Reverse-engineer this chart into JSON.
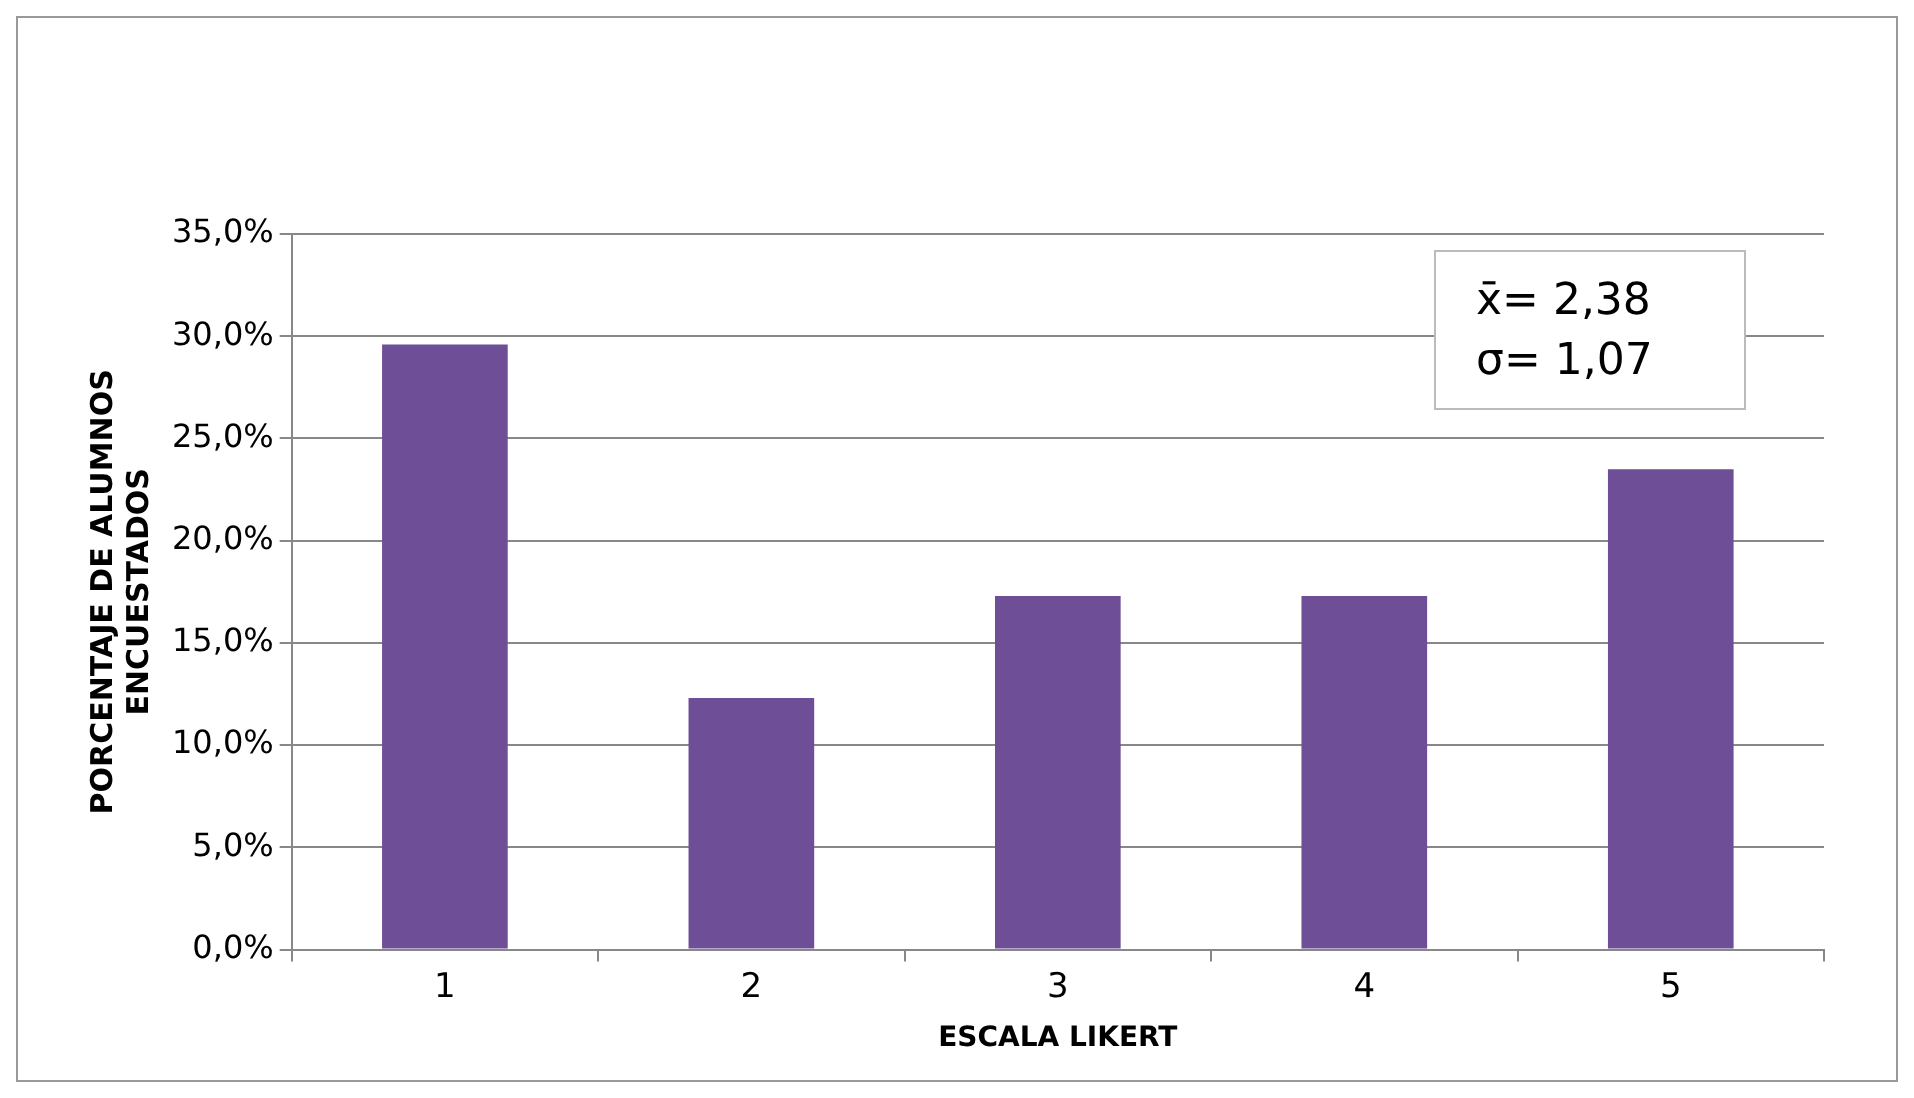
{
  "chart_data": {
    "type": "bar",
    "categories": [
      "1",
      "2",
      "3",
      "4",
      "5"
    ],
    "values": [
      29.6,
      12.3,
      17.3,
      17.3,
      23.5
    ],
    "color": "#6e4e96",
    "xlabel": "ESCALA LIKERT",
    "ylabel": "PORCENTAJE DE ALUMNOS ENCUESTADOS",
    "ylim": [
      0,
      35
    ],
    "yticks": [
      {
        "value": 0,
        "label": "0,0%"
      },
      {
        "value": 5,
        "label": "5,0%"
      },
      {
        "value": 10,
        "label": "10,0%"
      },
      {
        "value": 15,
        "label": "15,0%"
      },
      {
        "value": 20,
        "label": "20,0%"
      },
      {
        "value": 25,
        "label": "25,0%"
      },
      {
        "value": 30,
        "label": "30,0%"
      },
      {
        "value": 35,
        "label": "35,0%"
      }
    ],
    "grid": "y",
    "legend": false,
    "annotations": [
      "x̄= 2,38",
      "σ= 1,07"
    ]
  }
}
